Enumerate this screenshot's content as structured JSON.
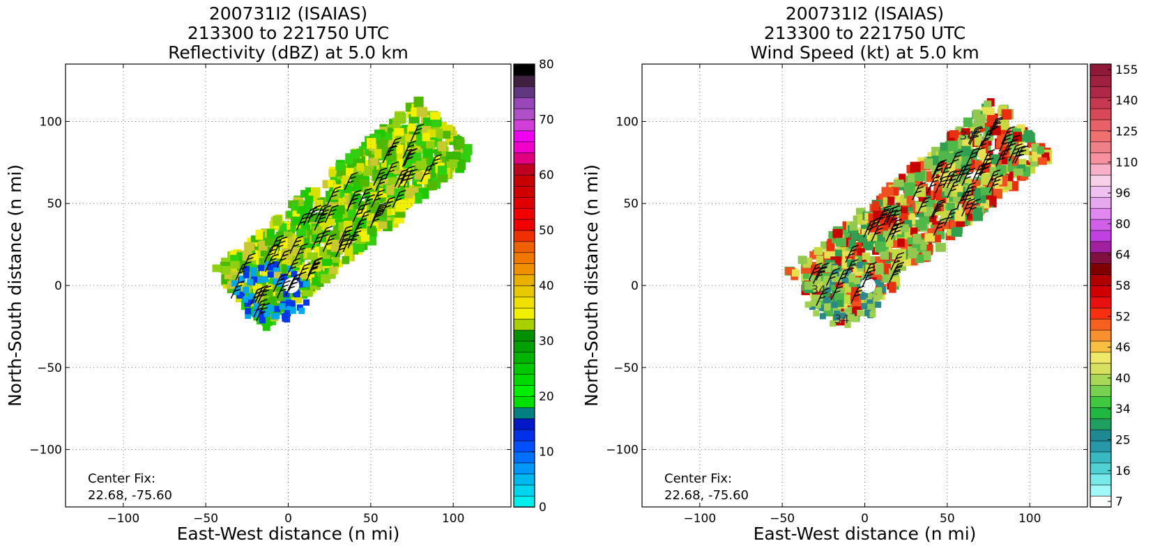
{
  "panels": [
    {
      "title_lines": [
        "200731I2 (ISAIAS)",
        "213300 to 221750 UTC",
        "Reflectivity (dBZ) at 5.0 km"
      ],
      "xlabel": "East-West distance (n mi)",
      "ylabel": "North-South distance (n mi)",
      "center_fix_label": "Center Fix:",
      "center_fix_value": "22.68, -75.60",
      "xticks": [
        -100,
        -50,
        0,
        50,
        100
      ],
      "yticks": [
        -100,
        -50,
        0,
        50,
        100
      ],
      "colorbar": {
        "ticks": [
          "0",
          "10",
          "20",
          "30",
          "40",
          "50",
          "60",
          "70",
          "80"
        ],
        "colors": [
          "#00eeee",
          "#00d4ee",
          "#00b8f0",
          "#0098f8",
          "#0070ff",
          "#0050ff",
          "#0030e8",
          "#0018c8",
          "#008080",
          "#00e000",
          "#00ee00",
          "#00d800",
          "#00c800",
          "#00b400",
          "#00a000",
          "#009000",
          "#a8d000",
          "#f0f000",
          "#f0e000",
          "#e8c800",
          "#e8b000",
          "#f09000",
          "#f07800",
          "#f06000",
          "#f03000",
          "#f00000",
          "#f00000",
          "#e00000",
          "#d00000",
          "#c80000",
          "#c00020",
          "#e00080",
          "#f000c8",
          "#f000f0",
          "#d040d8",
          "#b050c8",
          "#9848b8",
          "#603880",
          "#402040",
          "#000000"
        ]
      },
      "storm_colors": [
        "#20c800",
        "#30d010",
        "#50b800",
        "#90d010",
        "#d8e000",
        "#f0f000",
        "#c8c830",
        "#38b800",
        "#0038e8",
        "#00a8e8"
      ]
    },
    {
      "title_lines": [
        "200731I2 (ISAIAS)",
        "213300 to 221750 UTC",
        "Wind Speed (kt) at 5.0 km"
      ],
      "xlabel": "East-West distance (n mi)",
      "ylabel": "North-South distance (n mi)",
      "center_fix_label": "Center Fix:",
      "center_fix_value": "22.68, -75.60",
      "xticks": [
        -100,
        -50,
        0,
        50,
        100
      ],
      "yticks": [
        -100,
        -50,
        0,
        50,
        100
      ],
      "contour_labels": [
        "34",
        "34",
        "34"
      ],
      "colorbar": {
        "ticks": [
          "7",
          "16",
          "25",
          "34",
          "40",
          "46",
          "52",
          "58",
          "64",
          "80",
          "96",
          "110",
          "125",
          "140",
          "155"
        ],
        "colors": [
          "#ffffff",
          "#a0f8f8",
          "#78e8e8",
          "#50d0d0",
          "#38b8c0",
          "#2898a8",
          "#208890",
          "#20a060",
          "#20b840",
          "#40c840",
          "#78d050",
          "#a8d858",
          "#d8e060",
          "#f0e868",
          "#f8c040",
          "#f89030",
          "#f86020",
          "#f83010",
          "#e81010",
          "#d00000",
          "#b00000",
          "#800000",
          "#801040",
          "#a020a0",
          "#c040e0",
          "#d060e8",
          "#e088f0",
          "#e8a8f0",
          "#f0c0f0",
          "#f8d0e8",
          "#f8b0c8",
          "#f890a0",
          "#f08088",
          "#f07070",
          "#e86068",
          "#d84858",
          "#c83850",
          "#b02848",
          "#a02040",
          "#901838"
        ]
      },
      "storm_colors": [
        "#c8d840",
        "#e8e050",
        "#90c850",
        "#50b848",
        "#e83010",
        "#c80000",
        "#f05020",
        "#30a050",
        "#2a8888",
        "#a0d050"
      ]
    }
  ]
}
